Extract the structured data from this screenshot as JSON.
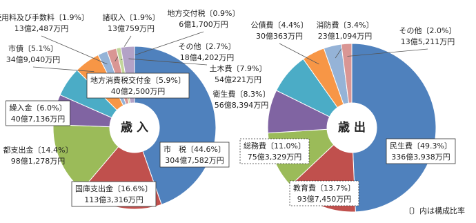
{
  "chart_data": [
    {
      "type": "pie",
      "title": "歳 入",
      "categories": [
        "市　税",
        "国庫支出金",
        "都支出金",
        "繰入金",
        "地方消費税交付金",
        "市債",
        "使用料及び手数料",
        "諸収入",
        "地方交付税",
        "その他"
      ],
      "values": [
        44.6,
        16.6,
        14.4,
        6.0,
        5.9,
        5.1,
        1.9,
        1.9,
        0.9,
        2.7
      ],
      "value_labels": [
        "〔44.6%〕",
        "〔16.6%〕",
        "〔14.4%〕",
        "〔6.0%〕",
        "〔5.9%〕",
        "〔5.1%〕",
        "〔1.9%〕",
        "〔1.9%〕",
        "〔0.9%〕",
        "〔2.7%〕"
      ],
      "amounts": [
        "304億7,582万円",
        "113億3,316万円",
        "98億1,278万円",
        "40億7,136万円",
        "40億2,500万円",
        "34億9,040万円",
        "13億2,487万円",
        "13億759万円",
        "6億1,700万円",
        "18億4,202万円"
      ],
      "colors": [
        "#4f81bd",
        "#c0504d",
        "#9bbb59",
        "#8064a2",
        "#4bacc6",
        "#f79646",
        "#95b3d7",
        "#d99694",
        "#c3d69b",
        "#b3a2c7"
      ]
    },
    {
      "type": "pie",
      "title": "歳 出",
      "categories": [
        "民生費",
        "教育費",
        "総務費",
        "衛生費",
        "土木費",
        "公債費",
        "消防費",
        "その他"
      ],
      "values": [
        49.3,
        13.7,
        11.0,
        8.3,
        7.9,
        4.4,
        3.4,
        2.0
      ],
      "value_labels": [
        "〔49.3%〕",
        "〔13.7%〕",
        "〔11.0%〕",
        "〔8.3%〕",
        "〔7.9%〕",
        "〔4.4%〕",
        "〔3.4%〕",
        "〔2.0%〕"
      ],
      "amounts": [
        "336億3,938万円",
        "93億7,450万円",
        "75億3,329万円",
        "56億8,394万円",
        "54億221万円",
        "30億363万円",
        "23億1,094万円",
        "13億5,211万円"
      ],
      "colors": [
        "#4f81bd",
        "#c0504d",
        "#9bbb59",
        "#8064a2",
        "#4bacc6",
        "#f79646",
        "#95b3d7",
        "#d99694"
      ]
    }
  ],
  "footnote": "〔〕内は構成比率"
}
